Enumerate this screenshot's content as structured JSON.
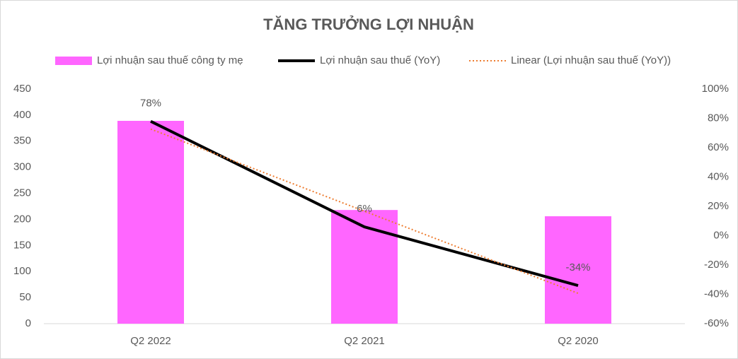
{
  "chart_data": {
    "type": "bar",
    "title": "TĂNG TRƯỞNG LỢI NHUẬN",
    "categories": [
      "Q2 2022",
      "Q2 2021",
      "Q2 2020"
    ],
    "series": [
      {
        "name": "Lợi nhuận sau thuế công ty mẹ",
        "type": "bar",
        "color": "#ff66ff",
        "values": [
          389,
          218,
          206
        ]
      },
      {
        "name": "Lợi nhuận sau thuế (YoY)",
        "type": "line",
        "axis": "y2",
        "color": "#000000",
        "values": [
          78,
          6,
          -34
        ],
        "value_labels": [
          "78%",
          "6%",
          "-34%"
        ]
      },
      {
        "name": "Linear (Lợi nhuận sau thuế (YoY))",
        "type": "line",
        "axis": "y2",
        "dotted": true,
        "color": "#ed7d31",
        "values": [
          72.7,
          16.7,
          -39.3
        ]
      }
    ],
    "ylim": [
      0,
      450
    ],
    "yticks": [
      0,
      50,
      100,
      150,
      200,
      250,
      300,
      350,
      400,
      450
    ],
    "y2lim": [
      -60,
      100
    ],
    "y2ticks": [
      {
        "value": -60,
        "label": "-60%"
      },
      {
        "value": -40,
        "label": "-40%"
      },
      {
        "value": -20,
        "label": "-20%"
      },
      {
        "value": 0,
        "label": "0%"
      },
      {
        "value": 20,
        "label": "20%"
      },
      {
        "value": 40,
        "label": "40%"
      },
      {
        "value": 60,
        "label": "60%"
      },
      {
        "value": 80,
        "label": "80%"
      },
      {
        "value": 100,
        "label": "100%"
      }
    ],
    "grid": false,
    "legend": "top"
  }
}
